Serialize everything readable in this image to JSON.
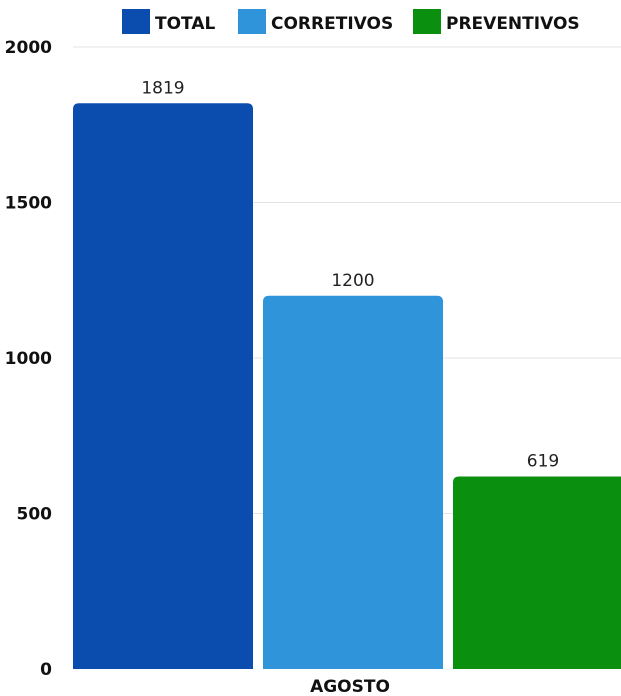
{
  "chart_data": {
    "type": "bar",
    "categories": [
      "AGOSTO"
    ],
    "series": [
      {
        "name": "TOTAL",
        "values": [
          1819
        ],
        "color": "#0B4DAE"
      },
      {
        "name": "CORRETIVOS",
        "values": [
          1200
        ],
        "color": "#2F94D9"
      },
      {
        "name": "PREVENTIVOS",
        "values": [
          619
        ],
        "color": "#0A8F0E"
      }
    ],
    "ylim": [
      0,
      2000
    ],
    "yticks": [
      0,
      500,
      1000,
      1500,
      2000
    ],
    "xlabel": "",
    "ylabel": "",
    "grid": true,
    "legend_position": "top"
  }
}
